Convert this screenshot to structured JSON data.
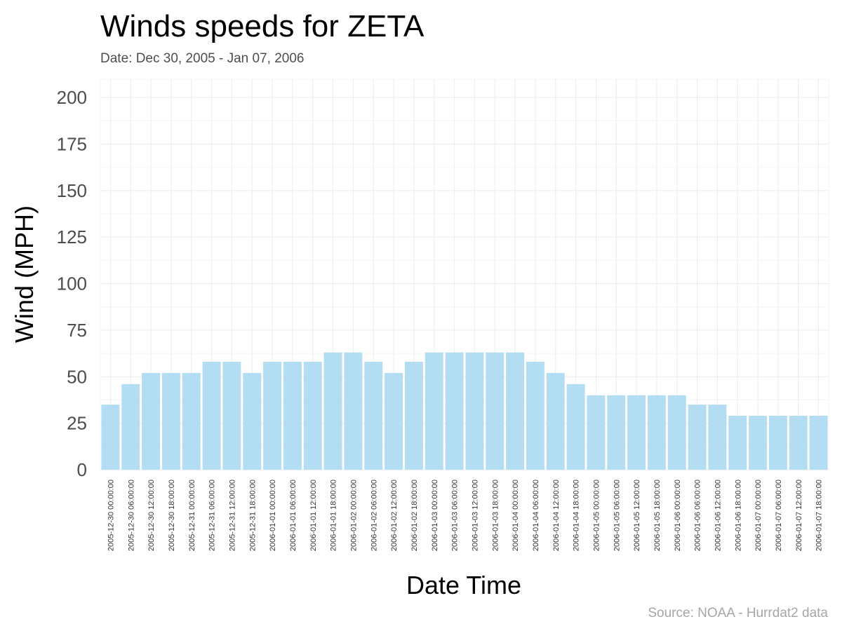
{
  "chart_data": {
    "type": "bar",
    "title": "Winds speeds for ZETA",
    "subtitle": "Date:  Dec 30, 2005 - Jan 07, 2006",
    "xlabel": "Date Time",
    "ylabel": "Wind (MPH)",
    "caption": "Source: NOAA - Hurrdat2 data",
    "ylim": [
      0,
      200
    ],
    "yticks": [
      0,
      25,
      50,
      75,
      100,
      125,
      150,
      175,
      200
    ],
    "grid": true,
    "bar_color": "#b3ddf2",
    "categories": [
      "2005-12-30 00:00:00",
      "2005-12-30 06:00:00",
      "2005-12-30 12:00:00",
      "2005-12-30 18:00:00",
      "2005-12-31 00:00:00",
      "2005-12-31 06:00:00",
      "2005-12-31 12:00:00",
      "2005-12-31 18:00:00",
      "2006-01-01 00:00:00",
      "2006-01-01 06:00:00",
      "2006-01-01 12:00:00",
      "2006-01-01 18:00:00",
      "2006-01-02 00:00:00",
      "2006-01-02 06:00:00",
      "2006-01-02 12:00:00",
      "2006-01-02 18:00:00",
      "2006-01-03 00:00:00",
      "2006-01-03 06:00:00",
      "2006-01-03 12:00:00",
      "2006-01-03 18:00:00",
      "2006-01-04 00:00:00",
      "2006-01-04 06:00:00",
      "2006-01-04 12:00:00",
      "2006-01-04 18:00:00",
      "2006-01-05 00:00:00",
      "2006-01-05 06:00:00",
      "2006-01-05 12:00:00",
      "2006-01-05 18:00:00",
      "2006-01-06 00:00:00",
      "2006-01-06 06:00:00",
      "2006-01-06 12:00:00",
      "2006-01-06 18:00:00",
      "2006-01-07 00:00:00",
      "2006-01-07 06:00:00",
      "2006-01-07 12:00:00",
      "2006-01-07 18:00:00"
    ],
    "values": [
      35,
      46,
      52,
      52,
      52,
      58,
      58,
      52,
      58,
      58,
      58,
      63,
      63,
      58,
      52,
      58,
      63,
      63,
      63,
      63,
      63,
      58,
      52,
      46,
      40,
      40,
      40,
      40,
      40,
      35,
      35,
      29,
      29,
      29,
      29,
      29
    ]
  }
}
